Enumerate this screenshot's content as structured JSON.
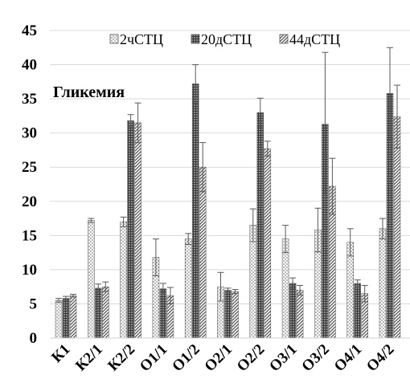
{
  "chart_data": {
    "type": "bar",
    "title": "Гликемия",
    "xlabel": "",
    "ylabel": "",
    "ylim": [
      0,
      45
    ],
    "yticks": [
      0,
      5,
      10,
      15,
      20,
      25,
      30,
      35,
      40,
      45
    ],
    "grid": true,
    "legend_position": "top",
    "categories": [
      "К1",
      "К2/1",
      "К2/2",
      "О1/1",
      "О1/2",
      "О2/1",
      "О2/2",
      "О3/1",
      "О3/2",
      "О4/1",
      "О4/2"
    ],
    "series": [
      {
        "name": "2чСТЦ",
        "pattern": "dots",
        "values": [
          5.5,
          17.2,
          17.0,
          11.8,
          14.5,
          7.5,
          16.5,
          14.5,
          15.8,
          14.0,
          16.0
        ],
        "errors": [
          0.3,
          0.3,
          0.7,
          2.7,
          0.8,
          2.1,
          2.4,
          2.0,
          3.2,
          2.0,
          1.5
        ]
      },
      {
        "name": "20дСТЦ",
        "pattern": "grid",
        "values": [
          5.8,
          7.3,
          31.8,
          7.2,
          37.2,
          7.0,
          33.0,
          8.0,
          31.3,
          8.0,
          35.8
        ],
        "errors": [
          0.3,
          0.6,
          0.9,
          0.8,
          2.8,
          0.3,
          2.1,
          0.8,
          10.5,
          0.5,
          6.7
        ]
      },
      {
        "name": "44дСТЦ",
        "pattern": "hatch",
        "values": [
          6.2,
          7.5,
          31.5,
          6.2,
          25.0,
          6.8,
          27.7,
          7.0,
          22.2,
          6.5,
          32.4
        ],
        "errors": [
          0.2,
          0.7,
          2.9,
          1.2,
          3.6,
          0.3,
          1.1,
          0.7,
          4.1,
          1.2,
          4.6
        ]
      }
    ]
  }
}
